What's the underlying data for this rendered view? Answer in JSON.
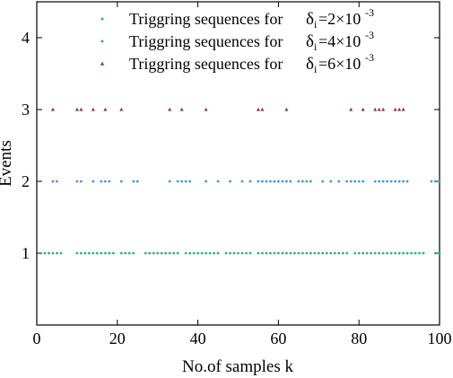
{
  "chart_data": {
    "type": "scatter",
    "xlabel": "No.of samples  k",
    "ylabel": "Events",
    "xlim": [
      0,
      100
    ],
    "ylim": [
      0,
      4.5
    ],
    "xticks": [
      0,
      20,
      40,
      60,
      80,
      100
    ],
    "yticks": [
      1,
      2,
      3,
      4
    ],
    "grid": false,
    "legend_position": "top-center",
    "series": [
      {
        "name": "Triggring sequences for",
        "symbol": "δ",
        "subscript": "i",
        "value_text": "=2×10",
        "exponent": "-3",
        "marker": "dot",
        "color": "#2fb07a",
        "y": 1,
        "x": [
          1,
          2,
          3,
          4,
          5,
          6,
          10,
          11,
          12,
          13,
          14,
          15,
          16,
          17,
          18,
          19,
          21,
          22,
          23,
          24,
          27,
          28,
          29,
          30,
          31,
          32,
          33,
          34,
          35,
          37,
          38,
          39,
          40,
          41,
          42,
          43,
          44,
          45,
          47,
          48,
          49,
          50,
          51,
          52,
          53,
          55,
          56,
          57,
          58,
          59,
          60,
          61,
          62,
          63,
          64,
          65,
          66,
          67,
          68,
          69,
          70,
          71,
          72,
          73,
          74,
          75,
          76,
          77,
          79,
          80,
          81,
          82,
          83,
          84,
          85,
          86,
          87,
          88,
          89,
          90,
          91,
          92,
          93,
          94,
          95,
          96,
          99,
          100
        ]
      },
      {
        "name": "Triggring sequences for",
        "symbol": "δ",
        "subscript": "i",
        "value_text": "=4×10",
        "exponent": "-3",
        "marker": "dot",
        "color": "#4a90d9",
        "y": 2,
        "x": [
          4,
          5,
          10,
          11,
          14,
          16,
          17,
          18,
          21,
          24,
          25,
          33,
          35,
          36,
          37,
          38,
          42,
          45,
          48,
          51,
          53,
          55,
          56,
          57,
          58,
          59,
          60,
          61,
          62,
          63,
          65,
          66,
          67,
          68,
          71,
          73,
          75,
          77,
          78,
          79,
          80,
          81,
          84,
          85,
          86,
          87,
          88,
          89,
          90,
          91,
          92,
          98,
          99,
          100
        ]
      },
      {
        "name": "Triggring sequences for",
        "symbol": "δ",
        "subscript": "i",
        "value_text": "=6×10",
        "exponent": "-3",
        "marker": "triangle",
        "color": "#8b3a3a",
        "y": 3,
        "x": [
          4,
          10,
          11,
          14,
          17,
          21,
          33,
          36,
          42,
          55,
          56,
          62,
          78,
          81,
          84,
          85,
          86,
          89,
          90,
          91
        ]
      }
    ]
  }
}
